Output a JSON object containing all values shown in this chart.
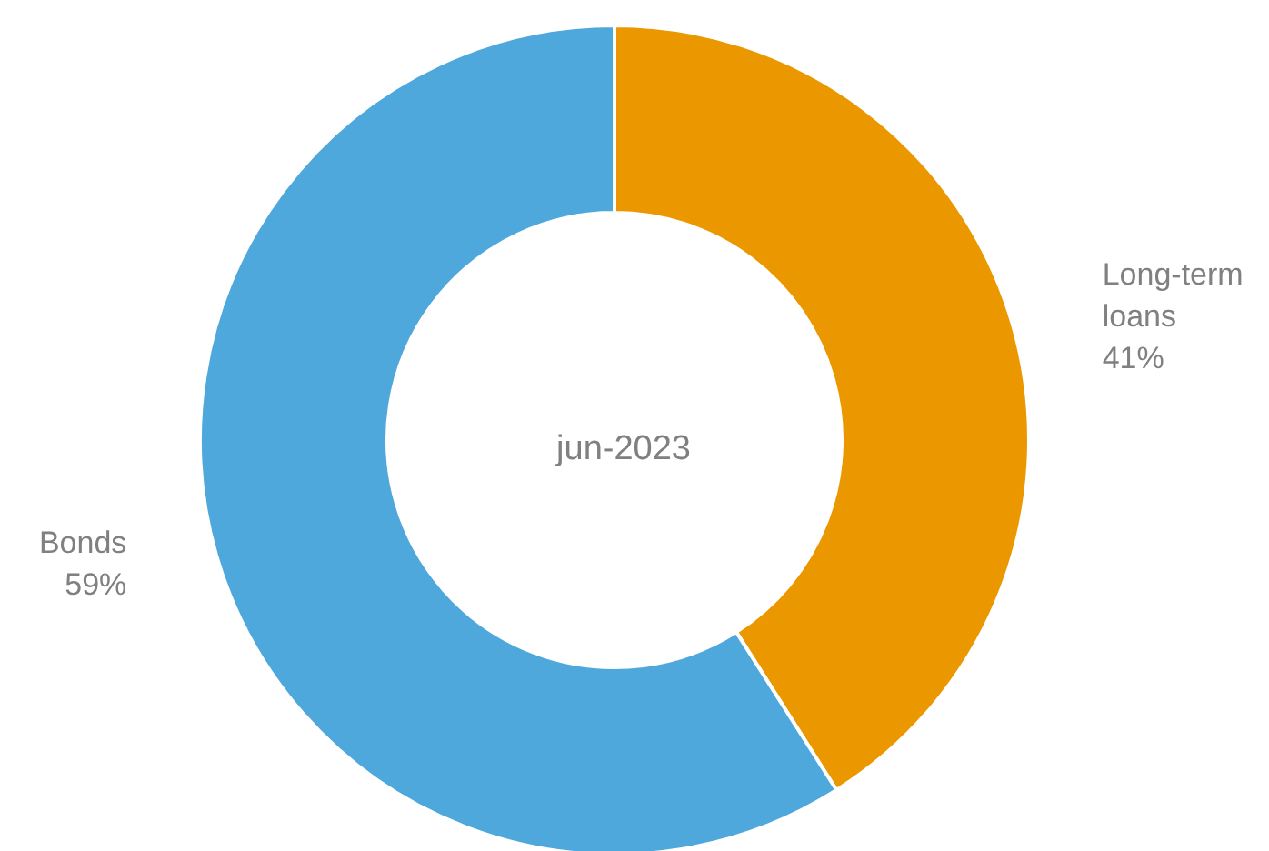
{
  "chart_data": {
    "type": "donut",
    "categories": [
      "Long-term loans",
      "Bonds"
    ],
    "values": [
      41,
      59
    ],
    "value_labels": [
      "41%",
      "59%"
    ],
    "colors": [
      "#eb9800",
      "#4fa8dc"
    ],
    "annotations": [
      "jun-2023"
    ],
    "legend": false
  }
}
